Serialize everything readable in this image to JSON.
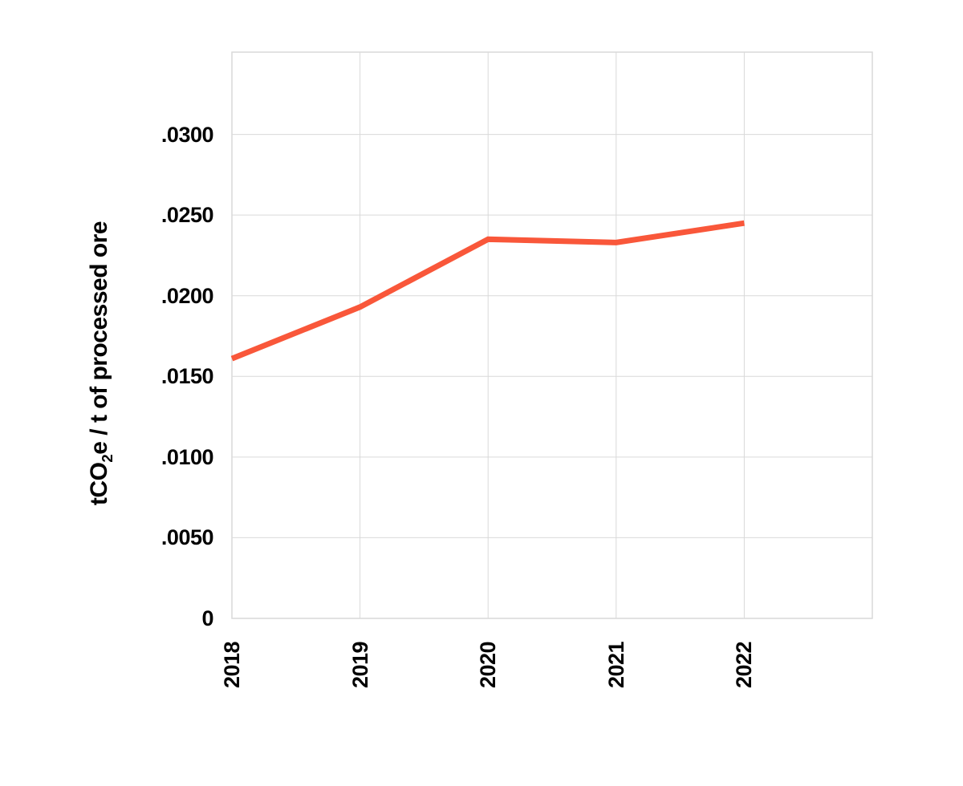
{
  "chart_data": {
    "type": "line",
    "x": [
      "2018",
      "2019",
      "2020",
      "2021",
      "2022"
    ],
    "values": [
      0.0161,
      0.0193,
      0.0235,
      0.0233,
      0.0245
    ],
    "title": "",
    "xlabel": "",
    "ylabel": "tCO2e / t of processed ore",
    "ylabel_parts": {
      "pre": "tCO",
      "sub": "2",
      "post": "e / t of processed ore"
    },
    "ylim": [
      0,
      0.0351
    ],
    "yticks": [
      {
        "value": 0,
        "label": "0"
      },
      {
        "value": 0.005,
        "label": ".0050"
      },
      {
        "value": 0.01,
        "label": ".0100"
      },
      {
        "value": 0.015,
        "label": ".0150"
      },
      {
        "value": 0.02,
        "label": ".0200"
      },
      {
        "value": 0.025,
        "label": ".0250"
      },
      {
        "value": 0.03,
        "label": ".0300"
      }
    ],
    "grid": true,
    "legend": false,
    "line_color": "#F9573A",
    "grid_color": "#D9D9D9",
    "text_color": "#000000",
    "background_color": "#FFFFFF"
  }
}
